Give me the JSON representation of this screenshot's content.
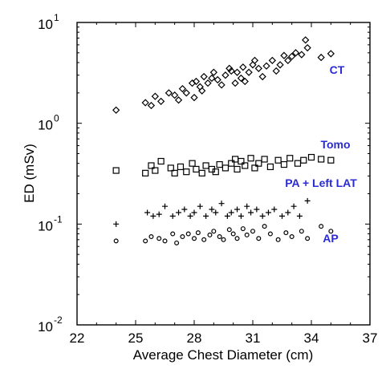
{
  "chart_data": {
    "type": "scatter",
    "title": "",
    "xlabel": "Average Chest Diameter (cm)",
    "ylabel": "ED (mSv)",
    "xlim": [
      22,
      37
    ],
    "ylim": [
      0.01,
      10
    ],
    "y_scale": "log",
    "grid": false,
    "legend": "none",
    "x_ticks": [
      "22",
      "25",
      "28",
      "31",
      "34",
      "37"
    ],
    "y_ticks": [
      {
        "base": "10",
        "exp": "-2"
      },
      {
        "base": "10",
        "exp": "-1"
      },
      {
        "base": "10",
        "exp": "0"
      },
      {
        "base": "10",
        "exp": "1"
      }
    ],
    "series": [
      {
        "name": "CT",
        "marker": "diamond",
        "label_color": "#2b2bd6",
        "x": [
          24.0,
          25.5,
          25.8,
          26.0,
          26.3,
          26.7,
          27.0,
          27.2,
          27.4,
          27.6,
          27.9,
          28.0,
          28.1,
          28.3,
          28.4,
          28.5,
          28.7,
          28.9,
          29.0,
          29.2,
          29.4,
          29.6,
          29.8,
          29.9,
          30.1,
          30.2,
          30.4,
          30.5,
          30.6,
          30.8,
          31.0,
          31.1,
          31.3,
          31.5,
          31.7,
          32.0,
          32.2,
          32.4,
          32.6,
          32.8,
          33.0,
          33.2,
          33.5,
          33.7,
          33.8,
          34.5,
          35.0
        ],
        "y": [
          1.35,
          1.6,
          1.5,
          1.85,
          1.65,
          2.0,
          1.9,
          1.7,
          2.2,
          2.0,
          2.5,
          1.8,
          2.6,
          2.3,
          2.1,
          2.9,
          2.5,
          2.8,
          3.2,
          2.7,
          2.4,
          3.0,
          3.5,
          3.3,
          2.5,
          3.2,
          2.8,
          3.6,
          2.6,
          3.2,
          3.8,
          4.2,
          3.5,
          2.9,
          3.7,
          4.2,
          3.3,
          3.8,
          4.7,
          4.2,
          4.6,
          5.0,
          4.8,
          6.7,
          5.6,
          4.5,
          4.9
        ]
      },
      {
        "name": "Tomo",
        "marker": "square",
        "label_color": "#2b2bd6",
        "x": [
          24.0,
          25.5,
          25.8,
          26.0,
          26.3,
          26.8,
          27.0,
          27.3,
          27.6,
          27.9,
          28.1,
          28.4,
          28.6,
          28.9,
          29.1,
          29.3,
          29.6,
          29.9,
          30.1,
          30.2,
          30.4,
          30.6,
          30.9,
          31.1,
          31.3,
          31.6,
          31.9,
          32.3,
          32.6,
          32.9,
          33.3,
          33.6,
          34.0,
          34.5,
          35.0
        ],
        "y": [
          0.34,
          0.32,
          0.38,
          0.34,
          0.42,
          0.36,
          0.32,
          0.37,
          0.33,
          0.4,
          0.35,
          0.32,
          0.38,
          0.35,
          0.33,
          0.39,
          0.36,
          0.4,
          0.44,
          0.35,
          0.42,
          0.38,
          0.45,
          0.36,
          0.4,
          0.44,
          0.37,
          0.43,
          0.39,
          0.45,
          0.4,
          0.43,
          0.46,
          0.44,
          0.43
        ]
      },
      {
        "name": "PA + Left LAT",
        "marker": "plus",
        "label_color": "#2b2bd6",
        "x": [
          24.0,
          25.6,
          25.9,
          26.2,
          26.5,
          26.9,
          27.2,
          27.5,
          27.8,
          28.0,
          28.3,
          28.6,
          28.9,
          29.1,
          29.4,
          29.7,
          29.9,
          30.2,
          30.4,
          30.7,
          30.9,
          31.2,
          31.5,
          31.8,
          32.1,
          32.5,
          32.8,
          33.1,
          33.4,
          33.8
        ],
        "y": [
          0.1,
          0.13,
          0.12,
          0.125,
          0.15,
          0.12,
          0.13,
          0.14,
          0.12,
          0.13,
          0.15,
          0.12,
          0.14,
          0.13,
          0.16,
          0.12,
          0.13,
          0.14,
          0.12,
          0.15,
          0.13,
          0.14,
          0.12,
          0.13,
          0.14,
          0.12,
          0.13,
          0.15,
          0.12,
          0.17
        ]
      },
      {
        "name": "AP",
        "marker": "circle",
        "label_color": "#2b2bd6",
        "x": [
          24.0,
          25.5,
          25.8,
          26.2,
          26.5,
          26.9,
          27.1,
          27.4,
          27.7,
          28.0,
          28.2,
          28.5,
          28.8,
          29.0,
          29.3,
          29.5,
          29.8,
          30.0,
          30.2,
          30.5,
          30.7,
          31.0,
          31.3,
          31.6,
          31.9,
          32.3,
          32.7,
          33.0,
          33.5,
          33.8,
          34.5,
          35.0
        ],
        "y": [
          0.068,
          0.068,
          0.075,
          0.072,
          0.068,
          0.08,
          0.065,
          0.075,
          0.08,
          0.072,
          0.082,
          0.07,
          0.078,
          0.085,
          0.075,
          0.07,
          0.088,
          0.08,
          0.072,
          0.09,
          0.078,
          0.085,
          0.072,
          0.095,
          0.08,
          0.07,
          0.082,
          0.075,
          0.085,
          0.072,
          0.095,
          0.085
        ]
      }
    ]
  }
}
